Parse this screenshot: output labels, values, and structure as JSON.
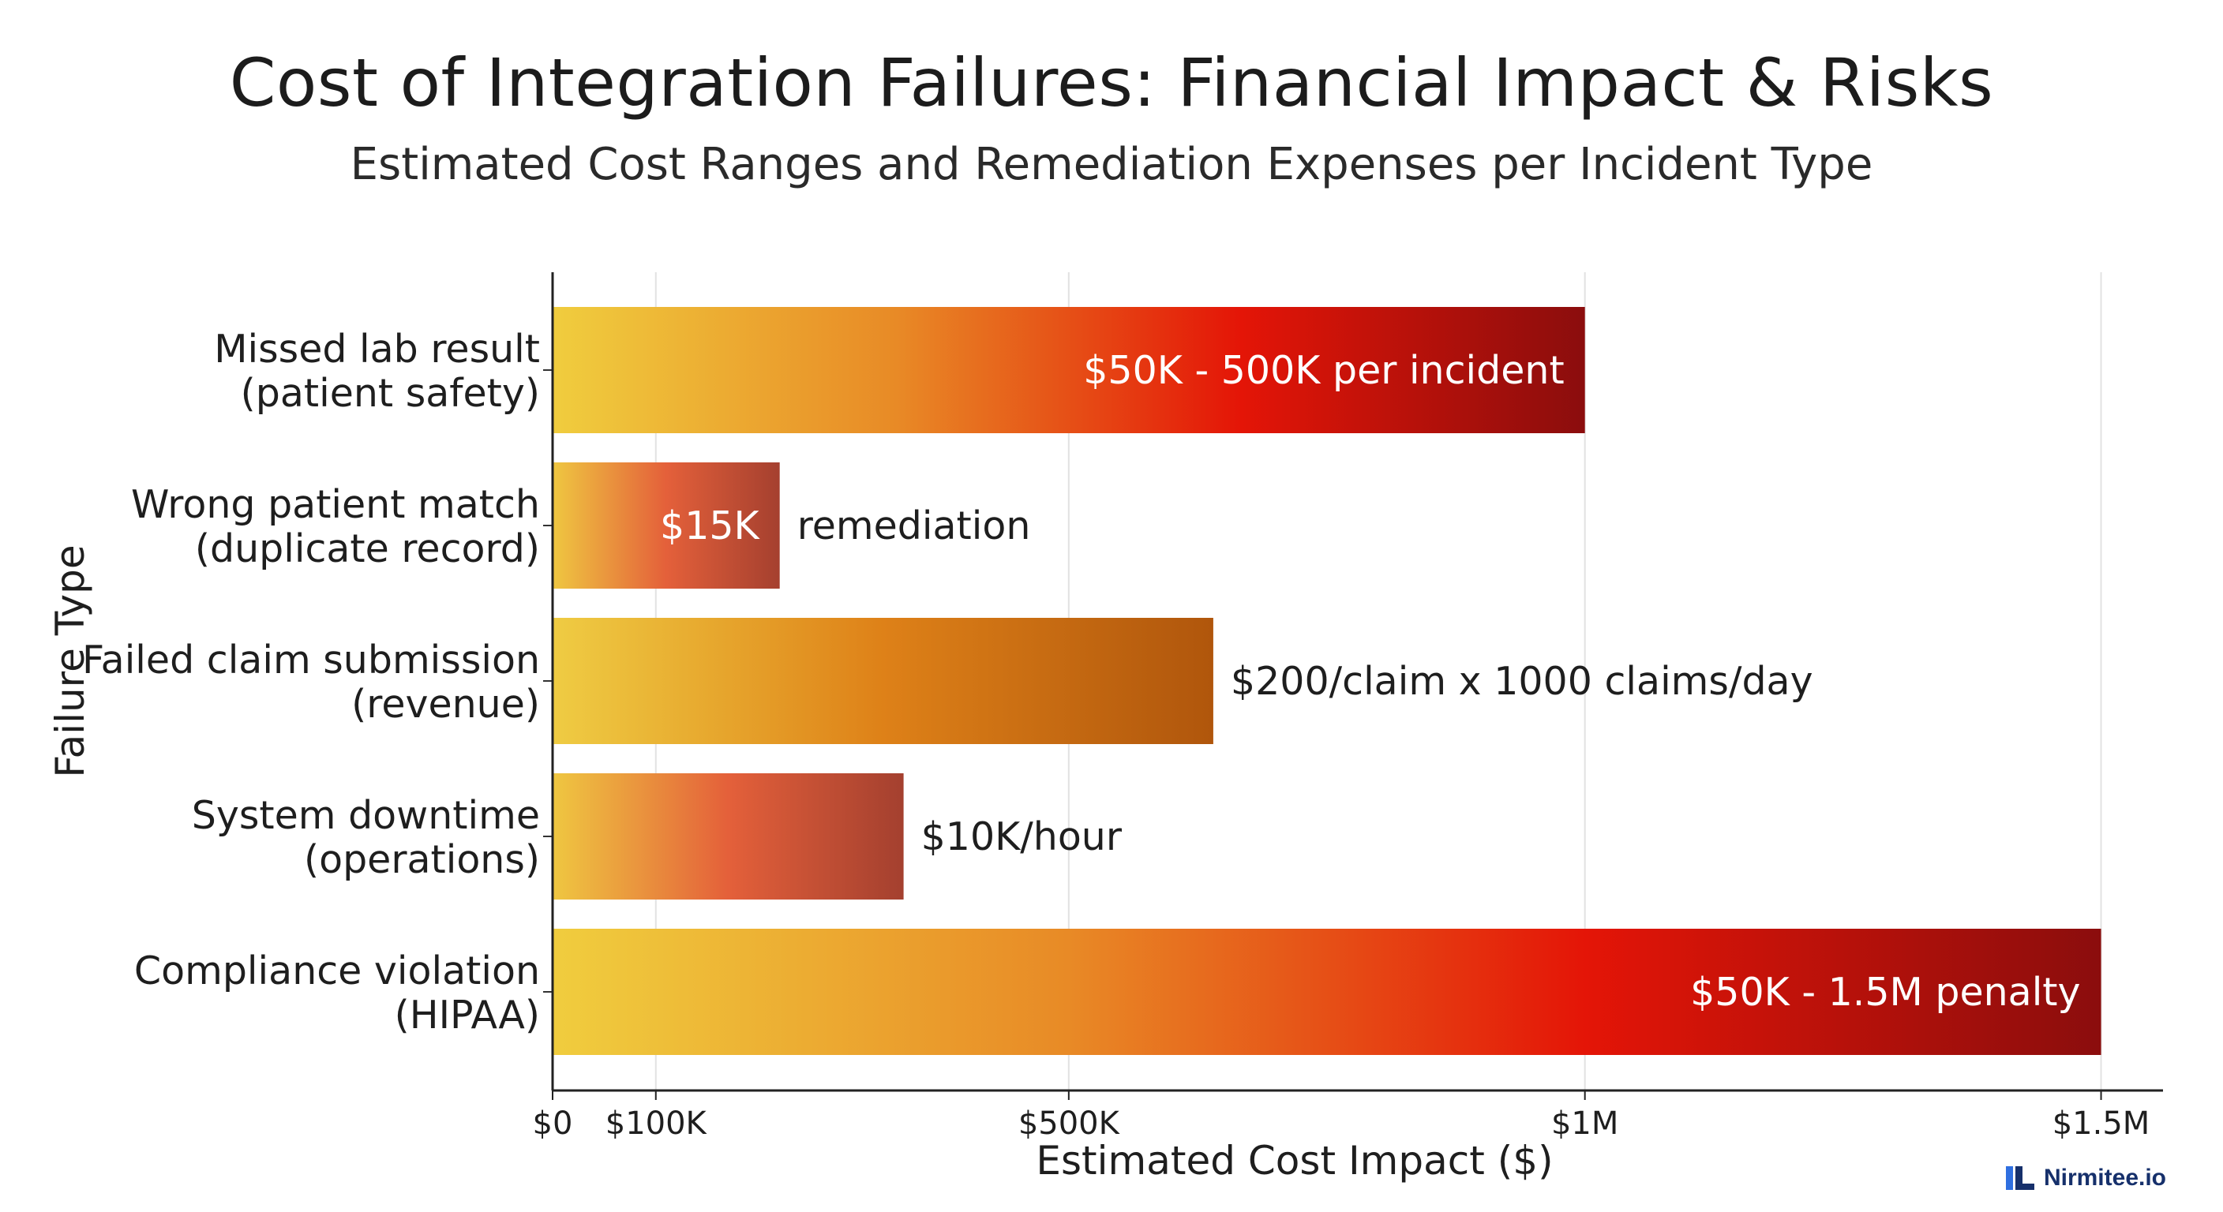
{
  "title": "Cost of Integration Failures: Financial Impact & Risks",
  "subtitle": "Estimated Cost Ranges and Remediation Expenses per Incident Type",
  "brand": "Nirmitee.io",
  "chart_data": {
    "type": "bar",
    "orientation": "horizontal",
    "ylabel": "Failure Type",
    "xlabel": "Estimated Cost Impact ($)",
    "xlim": [
      0,
      1560000
    ],
    "grid": true,
    "x_ticks": [
      {
        "value": 0,
        "label": "$0"
      },
      {
        "value": 100000,
        "label": "$100K"
      },
      {
        "value": 500000,
        "label": "$500K"
      },
      {
        "value": 1000000,
        "label": "$1M"
      },
      {
        "value": 1500000,
        "label": "$1.5M"
      }
    ],
    "bars": [
      {
        "category": [
          "Missed lab result",
          "(patient safety)"
        ],
        "value": 1000000,
        "label": "$50K - 500K per incident",
        "label_position": "inside-end",
        "colors": [
          "#f0cd3e",
          "#e88a26",
          "#e41507",
          "#8b0d0d"
        ]
      },
      {
        "category": [
          "Wrong patient match",
          "(duplicate record)"
        ],
        "value": 220000,
        "label": "$15K",
        "label_position": "inside-end",
        "secondary_label": "remediation",
        "colors": [
          "#efc741",
          "#e4603a",
          "#a5402f"
        ]
      },
      {
        "category": [
          "Failed claim submission",
          "(revenue)"
        ],
        "value": 640000,
        "label": "$200/claim x 1000 claims/day",
        "label_position": "outside",
        "colors": [
          "#efcc43",
          "#de8118",
          "#b0560c"
        ]
      },
      {
        "category": [
          "System downtime",
          "(operations)"
        ],
        "value": 340000,
        "label": "$10K/hour",
        "label_position": "outside",
        "colors": [
          "#efc741",
          "#e4603a",
          "#a4402f"
        ]
      },
      {
        "category": [
          "Compliance violation",
          "(HIPAA)"
        ],
        "value": 1500000,
        "label": "$50K - 1.5M penalty",
        "label_position": "inside-end",
        "colors": [
          "#f0cd3e",
          "#e88a26",
          "#e41507",
          "#8b0d0d"
        ]
      }
    ]
  }
}
